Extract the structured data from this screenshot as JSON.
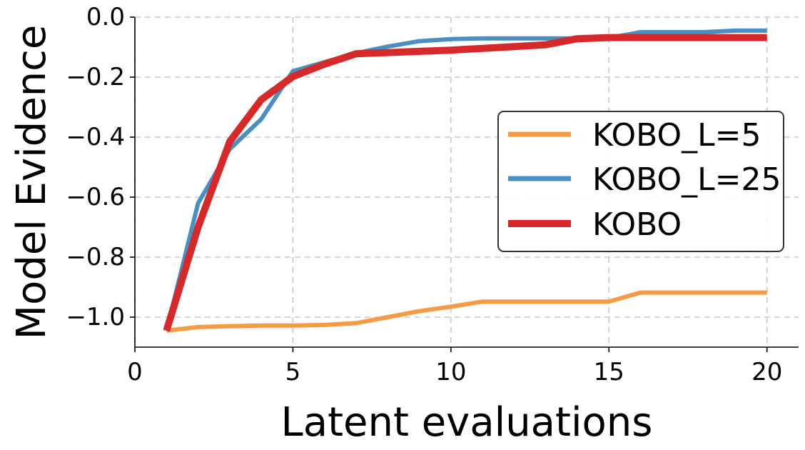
{
  "chart_data": {
    "type": "line",
    "title": "",
    "xlabel": "Latent evaluations",
    "ylabel": "Model Evidence",
    "xlim": [
      0,
      21
    ],
    "ylim": [
      -1.1,
      0.0
    ],
    "xticks": [
      0,
      5,
      10,
      15,
      20
    ],
    "yticks": [
      0.0,
      -0.2,
      -0.4,
      -0.6,
      -0.8,
      -1.0
    ],
    "xtick_labels": [
      "0",
      "5",
      "10",
      "15",
      "20"
    ],
    "ytick_labels": [
      "0.0",
      "−0.2",
      "−0.4",
      "−0.6",
      "−0.8",
      "−1.0"
    ],
    "grid": true,
    "legend_position": "center-right",
    "x": [
      1,
      2,
      3,
      4,
      5,
      6,
      7,
      8,
      9,
      10,
      11,
      12,
      13,
      14,
      15,
      16,
      17,
      18,
      19,
      20
    ],
    "series": [
      {
        "name": "KOBO_L=5",
        "color": "#f89a43",
        "values": [
          -1.045,
          -1.033,
          -1.03,
          -1.028,
          -1.028,
          -1.026,
          -1.02,
          -1.0,
          -0.98,
          -0.965,
          -0.948,
          -0.948,
          -0.948,
          -0.948,
          -0.948,
          -0.918,
          -0.918,
          -0.918,
          -0.918,
          -0.918
        ]
      },
      {
        "name": "KOBO_L=25",
        "color": "#4a8ec2",
        "values": [
          -1.045,
          -0.62,
          -0.44,
          -0.34,
          -0.18,
          -0.15,
          -0.12,
          -0.098,
          -0.08,
          -0.073,
          -0.071,
          -0.071,
          -0.071,
          -0.071,
          -0.069,
          -0.05,
          -0.05,
          -0.05,
          -0.045,
          -0.045
        ]
      },
      {
        "name": "KOBO",
        "color": "#d62a2a",
        "values": [
          -1.045,
          -0.7,
          -0.415,
          -0.275,
          -0.198,
          -0.157,
          -0.122,
          -0.118,
          -0.114,
          -0.11,
          -0.104,
          -0.098,
          -0.092,
          -0.072,
          -0.068,
          -0.068,
          -0.068,
          -0.068,
          -0.068,
          -0.068
        ]
      }
    ]
  }
}
